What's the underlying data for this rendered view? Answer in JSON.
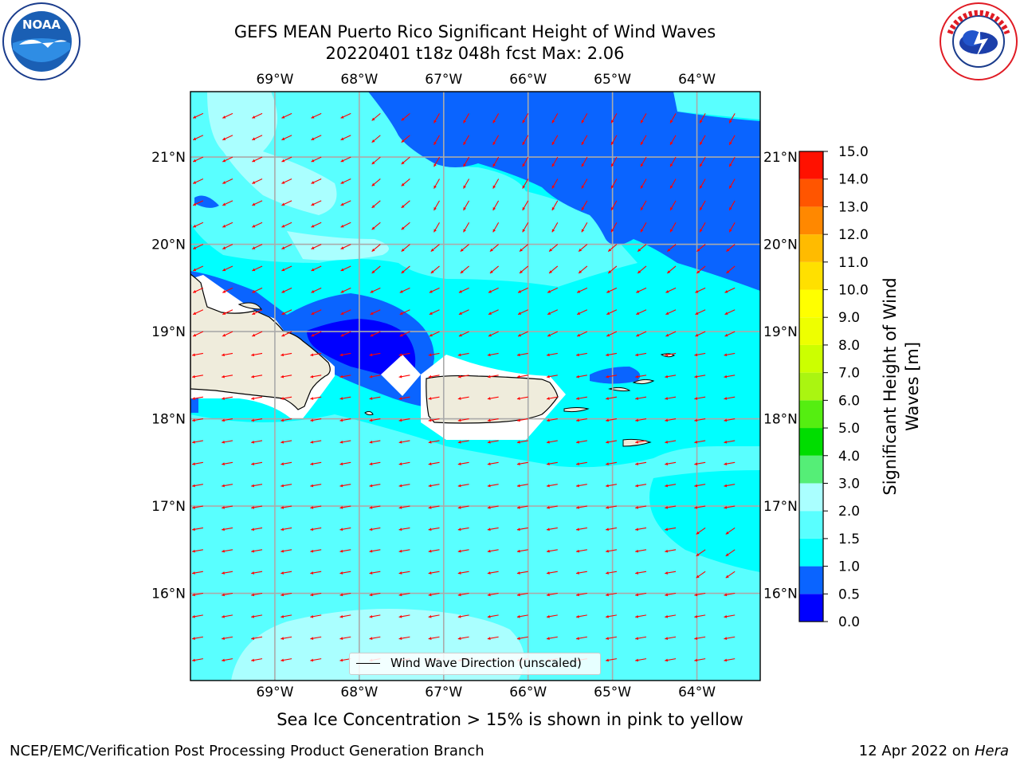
{
  "title_line1": "GEFS MEAN Puerto Rico Significant Height of Wind Waves",
  "title_line2": "20220401 t18z 048h fcst   Max: 2.06",
  "subtitle": "Sea Ice Concentration > 15% is shown in pink to yellow",
  "footer_left": "NCEP/EMC/Verification Post Processing Product Generation Branch",
  "footer_date": "12 Apr 2022 on ",
  "footer_machine": "Hera",
  "legend_label": "Wind Wave Direction (unscaled)",
  "logos": {
    "left": "noaa-logo",
    "right": "nws-logo"
  },
  "chart_data": {
    "type": "heatmap",
    "colorbar": {
      "label": "Significant Height of Wind Waves [m]",
      "levels": [
        0.0,
        0.5,
        1.0,
        1.5,
        2.0,
        3.0,
        4.0,
        5.0,
        6.0,
        7.0,
        8.0,
        9.0,
        10.0,
        11.0,
        12.0,
        13.0,
        14.0,
        15.0
      ],
      "tick_labels": [
        "0.0",
        "0.5",
        "1.0",
        "1.5",
        "2.0",
        "3.0",
        "4.0",
        "5.0",
        "6.0",
        "7.0",
        "8.0",
        "9.0",
        "10.0",
        "11.0",
        "12.0",
        "13.0",
        "14.0",
        "15.0"
      ],
      "colors": [
        "#0000ff",
        "#0a64ff",
        "#00ffff",
        "#59ffff",
        "#aaffff",
        "#55ee77",
        "#00dd00",
        "#55ee11",
        "#aaf511",
        "#ccff00",
        "#eeff00",
        "#ffff00",
        "#ffe000",
        "#ffbb00",
        "#ff8800",
        "#ff5500",
        "#ff1100"
      ]
    },
    "lon_range": [
      -70,
      -63.25
    ],
    "lat_range": [
      15.0,
      21.75
    ],
    "x_ticks": [
      -69,
      -68,
      -67,
      -66,
      -65,
      -64
    ],
    "x_tick_labels": [
      "69°W",
      "68°W",
      "67°W",
      "66°W",
      "65°W",
      "64°W"
    ],
    "y_ticks": [
      16,
      17,
      18,
      19,
      20,
      21
    ],
    "y_tick_labels": [
      "16°N",
      "17°N",
      "18°N",
      "19°N",
      "20°N",
      "21°N"
    ],
    "grid": true,
    "max_value": 2.06,
    "arrow_direction": "mostly westward, southwestward in the north",
    "legend_placement": "bottom-center",
    "colors": {
      "land": "#efecdc",
      "arrow": "#ff0000",
      "ice_mask": "#ffffff"
    }
  }
}
